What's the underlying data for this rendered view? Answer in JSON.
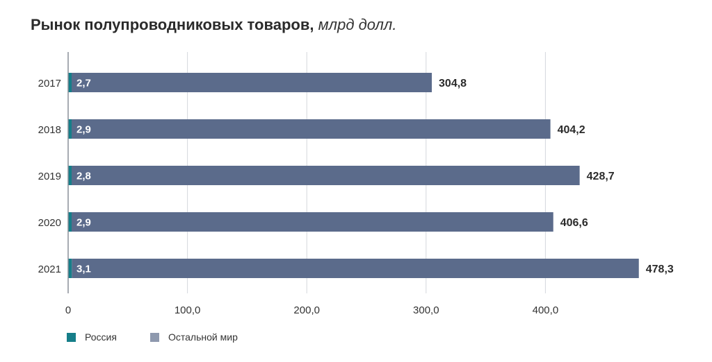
{
  "title": {
    "main": "Рынок полупроводниковых товаров,",
    "unit": "млрд долл."
  },
  "colors": {
    "russia": "#167e89",
    "rest": "#5b6b8b",
    "rest_legend": "#8e99ae",
    "grid": "#d4d7dc",
    "axis": "#8a8f99"
  },
  "chart_data": {
    "type": "bar",
    "orientation": "horizontal",
    "stacked": true,
    "categories": [
      "2017",
      "2018",
      "2019",
      "2020",
      "2021"
    ],
    "series": [
      {
        "name": "Россия",
        "values": [
          2.7,
          2.9,
          2.8,
          2.9,
          3.1
        ],
        "labels": [
          "2,7",
          "2,9",
          "2,8",
          "2,9",
          "3,1"
        ]
      },
      {
        "name": "Остальной мир",
        "values": [
          302.1,
          401.3,
          425.9,
          403.7,
          475.2
        ]
      }
    ],
    "totals": [
      304.8,
      404.2,
      428.7,
      406.6,
      478.3
    ],
    "total_labels": [
      "304,8",
      "404,2",
      "428,7",
      "406,6",
      "478,3"
    ],
    "x_ticks": [
      0,
      100,
      200,
      300,
      400
    ],
    "x_tick_labels": [
      "0",
      "100,0",
      "200,0",
      "300,0",
      "400,0"
    ],
    "xlim": [
      0,
      478.3
    ],
    "grid": true,
    "legend_position": "bottom-left"
  }
}
